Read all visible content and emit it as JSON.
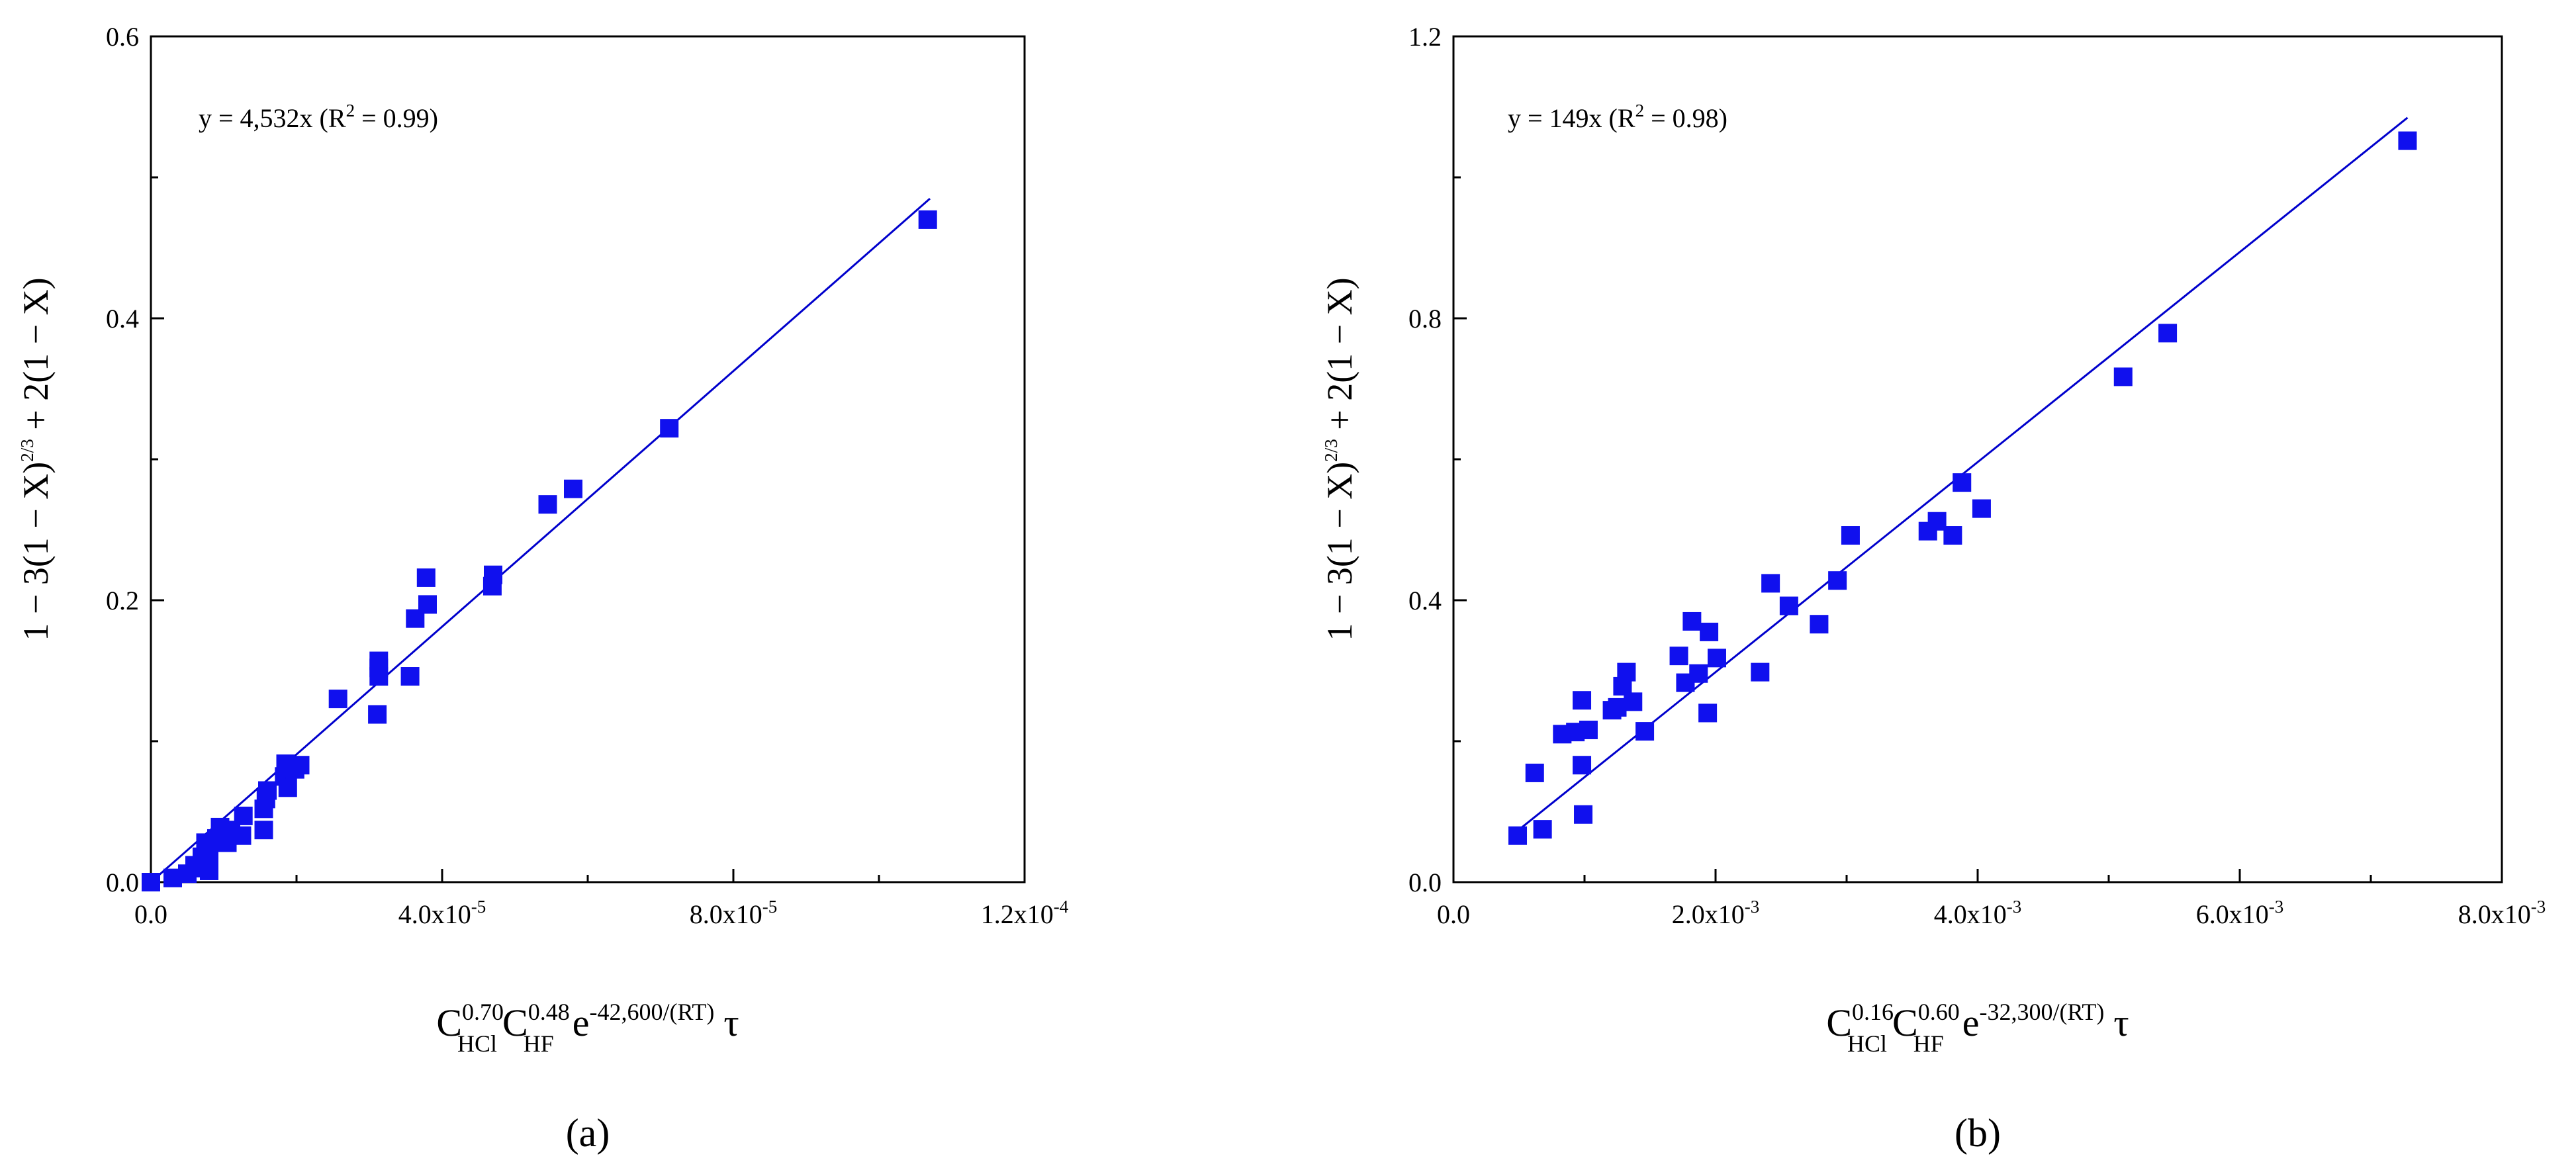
{
  "chart_data": [
    {
      "type": "scatter",
      "panel_label": "(a)",
      "equation_text": "y = 4,532x (R",
      "equation_sup": "2",
      "equation_tail": " = 0.99)",
      "ylabel": {
        "p1": "1 − 3(1 − X)",
        "sup": "2/3",
        "p2": " + 2(1 − X)"
      },
      "xlabel": {
        "c1": "C",
        "c1_sup": "0.70",
        "c1_sub": "HCl",
        "c2": "C",
        "c2_sup": "0.48",
        "c2_sub": "HF",
        "e": "e",
        "e_sup": "-42,600/(RT)",
        "tau": "τ"
      },
      "xlim": [
        0,
        0.00012
      ],
      "ylim": [
        0,
        0.6
      ],
      "xticks": [
        {
          "value": 0,
          "m": "0.0",
          "e": ""
        },
        {
          "value": 4e-05,
          "m": "4.0x10",
          "e": "-5"
        },
        {
          "value": 8e-05,
          "m": "8.0x10",
          "e": "-5"
        },
        {
          "value": 0.00012,
          "m": "1.2x10",
          "e": "-4"
        }
      ],
      "yticks": [
        {
          "value": 0,
          "label": "0.0"
        },
        {
          "value": 0.2,
          "label": "0.2"
        },
        {
          "value": 0.4,
          "label": "0.4"
        },
        {
          "value": 0.6,
          "label": "0.6"
        }
      ],
      "fit": {
        "slope": 4532,
        "x_start": 0,
        "x_end": 0.000107
      },
      "points": [
        [
          0.0,
          0.0
        ],
        [
          3e-06,
          0.003
        ],
        [
          5e-06,
          0.006
        ],
        [
          6e-06,
          0.012
        ],
        [
          7e-06,
          0.01
        ],
        [
          7e-06,
          0.018
        ],
        [
          7.5e-06,
          0.028
        ],
        [
          8e-06,
          0.008
        ],
        [
          8e-06,
          0.016
        ],
        [
          8e-06,
          0.022
        ],
        [
          9e-06,
          0.031
        ],
        [
          9.5e-06,
          0.039
        ],
        [
          1.05e-05,
          0.028
        ],
        [
          1.1e-05,
          0.037
        ],
        [
          1.25e-05,
          0.033
        ],
        [
          1.27e-05,
          0.047
        ],
        [
          1.55e-05,
          0.037
        ],
        [
          1.55e-05,
          0.052
        ],
        [
          1.58e-05,
          0.059
        ],
        [
          1.6e-05,
          0.065
        ],
        [
          1.83e-05,
          0.075
        ],
        [
          1.85e-05,
          0.084
        ],
        [
          1.88e-05,
          0.067
        ],
        [
          1.91e-05,
          0.081
        ],
        [
          1.98e-05,
          0.08
        ],
        [
          2.05e-05,
          0.083
        ],
        [
          2.57e-05,
          0.13
        ],
        [
          3.11e-05,
          0.119
        ],
        [
          3.13e-05,
          0.146
        ],
        [
          3.13e-05,
          0.152
        ],
        [
          3.13e-05,
          0.157
        ],
        [
          3.56e-05,
          0.146
        ],
        [
          3.63e-05,
          0.187
        ],
        [
          3.78e-05,
          0.216
        ],
        [
          3.8e-05,
          0.197
        ],
        [
          4.69e-05,
          0.21
        ],
        [
          4.7e-05,
          0.218
        ],
        [
          5.45e-05,
          0.268
        ],
        [
          5.8e-05,
          0.279
        ],
        [
          7.12e-05,
          0.322
        ],
        [
          0.0001067,
          0.47
        ]
      ]
    },
    {
      "type": "scatter",
      "panel_label": "(b)",
      "equation_text": "y = 149x (R",
      "equation_sup": "2",
      "equation_tail": " = 0.98)",
      "ylabel": {
        "p1": "1 − 3(1 − X)",
        "sup": "2/3",
        "p2": " + 2(1 − X)"
      },
      "xlabel": {
        "c1": "C",
        "c1_sup": "0.16",
        "c1_sub": "HCl",
        "c2": "C",
        "c2_sup": "0.60",
        "c2_sub": "HF",
        "e": "e",
        "e_sup": "-32,300/(RT)",
        "tau": "τ"
      },
      "xlim": [
        0,
        0.008
      ],
      "ylim": [
        0,
        1.2
      ],
      "xticks": [
        {
          "value": 0,
          "m": "0.0",
          "e": ""
        },
        {
          "value": 0.002,
          "m": "2.0x10",
          "e": "-3"
        },
        {
          "value": 0.004,
          "m": "4.0x10",
          "e": "-3"
        },
        {
          "value": 0.006,
          "m": "6.0x10",
          "e": "-3"
        },
        {
          "value": 0.008,
          "m": "8.0x10",
          "e": "-3"
        }
      ],
      "yticks": [
        {
          "value": 0,
          "label": "0.0"
        },
        {
          "value": 0.4,
          "label": "0.4"
        },
        {
          "value": 0.8,
          "label": "0.8"
        },
        {
          "value": 1.2,
          "label": "1.2"
        }
      ],
      "fit": {
        "slope": 149,
        "x_start": 0.00048,
        "x_end": 0.00728
      },
      "points": [
        [
          0.00049,
          0.066
        ],
        [
          0.00062,
          0.155
        ],
        [
          0.00068,
          0.075
        ],
        [
          0.00083,
          0.21
        ],
        [
          0.00093,
          0.213
        ],
        [
          0.00098,
          0.166
        ],
        [
          0.00098,
          0.258
        ],
        [
          0.00099,
          0.096
        ],
        [
          0.00103,
          0.216
        ],
        [
          0.00121,
          0.244
        ],
        [
          0.00125,
          0.248
        ],
        [
          0.00129,
          0.278
        ],
        [
          0.00132,
          0.298
        ],
        [
          0.00137,
          0.256
        ],
        [
          0.00146,
          0.214
        ],
        [
          0.00172,
          0.321
        ],
        [
          0.00177,
          0.283
        ],
        [
          0.00182,
          0.37
        ],
        [
          0.00187,
          0.296
        ],
        [
          0.00194,
          0.24
        ],
        [
          0.00195,
          0.355
        ],
        [
          0.00201,
          0.318
        ],
        [
          0.00234,
          0.298
        ],
        [
          0.00242,
          0.424
        ],
        [
          0.00256,
          0.392
        ],
        [
          0.00279,
          0.366
        ],
        [
          0.00293,
          0.428
        ],
        [
          0.00303,
          0.492
        ],
        [
          0.00362,
          0.498
        ],
        [
          0.00369,
          0.512
        ],
        [
          0.00381,
          0.492
        ],
        [
          0.00388,
          0.567
        ],
        [
          0.00403,
          0.53
        ],
        [
          0.00511,
          0.717
        ],
        [
          0.00545,
          0.779
        ],
        [
          0.00728,
          1.052
        ]
      ]
    }
  ]
}
